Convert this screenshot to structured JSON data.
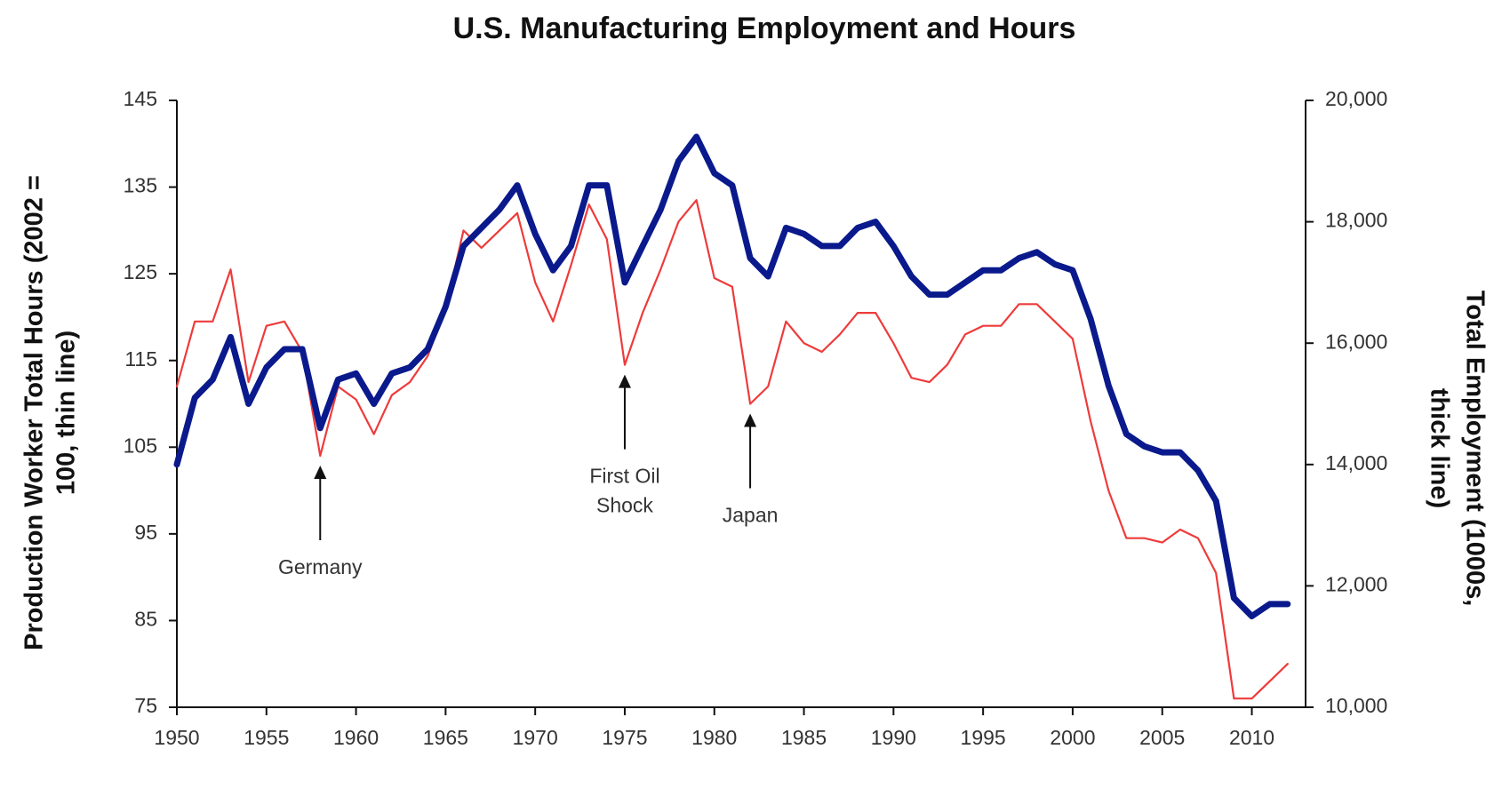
{
  "chart_data": {
    "type": "line",
    "title": "U.S. Manufacturing Employment and Hours",
    "y_label_lines": [
      "Production Worker Total Hours (2002 =",
      "100, thin line)"
    ],
    "y2_label_lines": [
      "Total Employment (1000s,",
      "thick line)"
    ],
    "x": [
      1950,
      1951,
      1952,
      1953,
      1954,
      1955,
      1956,
      1957,
      1958,
      1959,
      1960,
      1961,
      1962,
      1963,
      1964,
      1965,
      1966,
      1967,
      1968,
      1969,
      1970,
      1971,
      1972,
      1973,
      1974,
      1975,
      1976,
      1977,
      1978,
      1979,
      1980,
      1981,
      1982,
      1983,
      1984,
      1985,
      1986,
      1987,
      1988,
      1989,
      1990,
      1991,
      1992,
      1993,
      1994,
      1995,
      1996,
      1997,
      1998,
      1999,
      2000,
      2001,
      2002,
      2003,
      2004,
      2005,
      2006,
      2007,
      2008,
      2009,
      2010,
      2011,
      2012
    ],
    "series": [
      {
        "color": "#ee3b3b",
        "axis": "y",
        "values": [
          112,
          119.5,
          119.5,
          125.5,
          112.5,
          119,
          119.5,
          116,
          104,
          112,
          110.5,
          106.5,
          111,
          112.5,
          115.5,
          121,
          130,
          128,
          130,
          132,
          124,
          119.5,
          126,
          133,
          129,
          114.5,
          120.5,
          125.5,
          131,
          133.5,
          124.5,
          123.5,
          110,
          112,
          119.5,
          117,
          116,
          118,
          120.5,
          120.5,
          117,
          113,
          112.5,
          114.5,
          118,
          119,
          119,
          121.5,
          121.5,
          119.5,
          117.5,
          108,
          100,
          94.5,
          94.5,
          94,
          95.5,
          94.5,
          90.5,
          76,
          76,
          78,
          80
        ]
      },
      {
        "color": "#0a1a8c",
        "axis": "y2",
        "values": [
          14000,
          15100,
          15400,
          16100,
          15000,
          15600,
          15900,
          15900,
          14600,
          15400,
          15500,
          15000,
          15500,
          15600,
          15900,
          16600,
          17600,
          17900,
          18200,
          18600,
          17800,
          17200,
          17600,
          18600,
          18600,
          17000,
          17600,
          18200,
          19000,
          19400,
          18800,
          18600,
          17400,
          17100,
          17900,
          17800,
          17600,
          17600,
          17900,
          18000,
          17600,
          17100,
          16800,
          16800,
          17000,
          17200,
          17200,
          17400,
          17500,
          17300,
          17200,
          16400,
          15300,
          14500,
          14300,
          14200,
          14200,
          13900,
          13400,
          11800,
          11500,
          11700,
          11700
        ]
      }
    ],
    "xlim": [
      1950,
      2013
    ],
    "xticks": [
      1950,
      1955,
      1960,
      1965,
      1970,
      1975,
      1980,
      1985,
      1990,
      1995,
      2000,
      2005,
      2010
    ],
    "ylim": [
      75,
      145
    ],
    "yticks": [
      75,
      85,
      95,
      105,
      115,
      125,
      135,
      145
    ],
    "y2lim": [
      10000,
      20000
    ],
    "y2ticks": [
      {
        "value": 10000,
        "label": "10,000"
      },
      {
        "value": 12000,
        "label": "12,000"
      },
      {
        "value": 14000,
        "label": "14,000"
      },
      {
        "value": 16000,
        "label": "16,000"
      },
      {
        "value": 18000,
        "label": "18,000"
      },
      {
        "value": 20000,
        "label": "20,000"
      }
    ],
    "grid": false,
    "annotations": [
      {
        "x": 1958,
        "lines": [
          "Germany"
        ]
      },
      {
        "x": 1975,
        "lines": [
          "First Oil",
          "Shock"
        ]
      },
      {
        "x": 1982,
        "lines": [
          "Japan"
        ]
      }
    ]
  }
}
